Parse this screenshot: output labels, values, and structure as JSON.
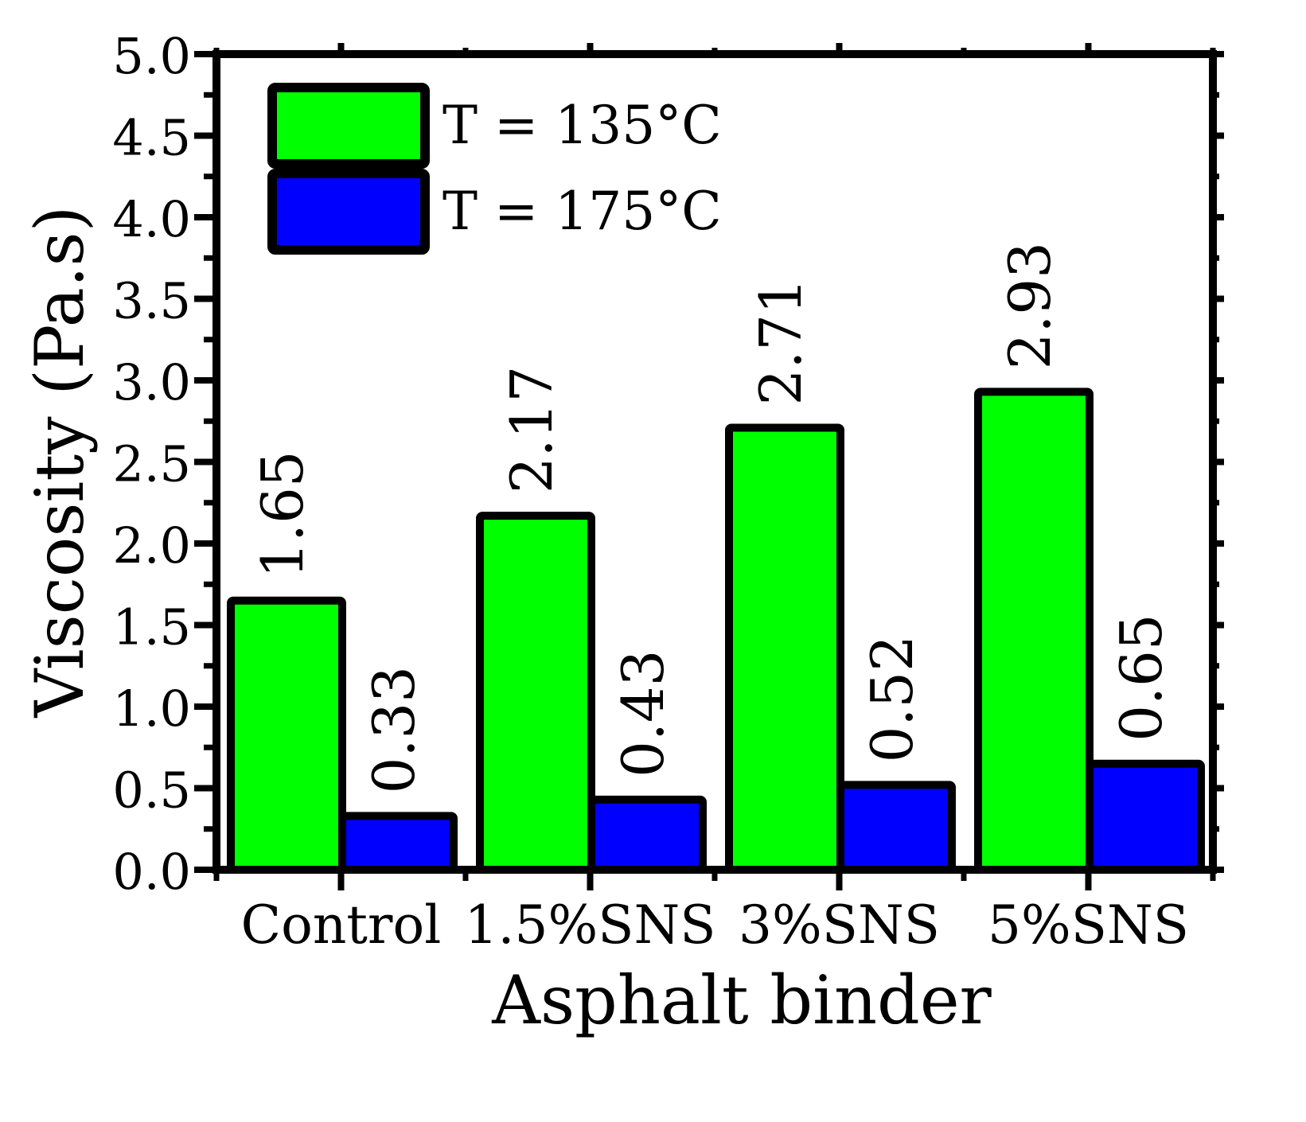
{
  "chart_data": {
    "type": "bar",
    "title": "",
    "xlabel": "Asphalt binder",
    "ylabel": "Viscosity (Pa.s)",
    "ylim": [
      0,
      5.0
    ],
    "yticks": [
      "0.0",
      "0.5",
      "1.0",
      "1.5",
      "2.0",
      "2.5",
      "3.0",
      "3.5",
      "4.0",
      "4.5",
      "5.0"
    ],
    "categories": [
      "Control",
      "1.5%SNS",
      "3%SNS",
      "5%SNS"
    ],
    "series": [
      {
        "name": "T = 135°C",
        "color": "#00ff00",
        "values": [
          1.65,
          2.17,
          2.71,
          2.93
        ],
        "labels": [
          "1.65",
          "2.17",
          "2.71",
          "2.93"
        ]
      },
      {
        "name": "T = 175°C",
        "color": "#0000ff",
        "values": [
          0.33,
          0.43,
          0.52,
          0.65
        ],
        "labels": [
          "0.33",
          "0.43",
          "0.52",
          "0.65"
        ]
      }
    ],
    "grid": false,
    "legend_position": "top-left",
    "data_labels": "rotated above bars"
  }
}
